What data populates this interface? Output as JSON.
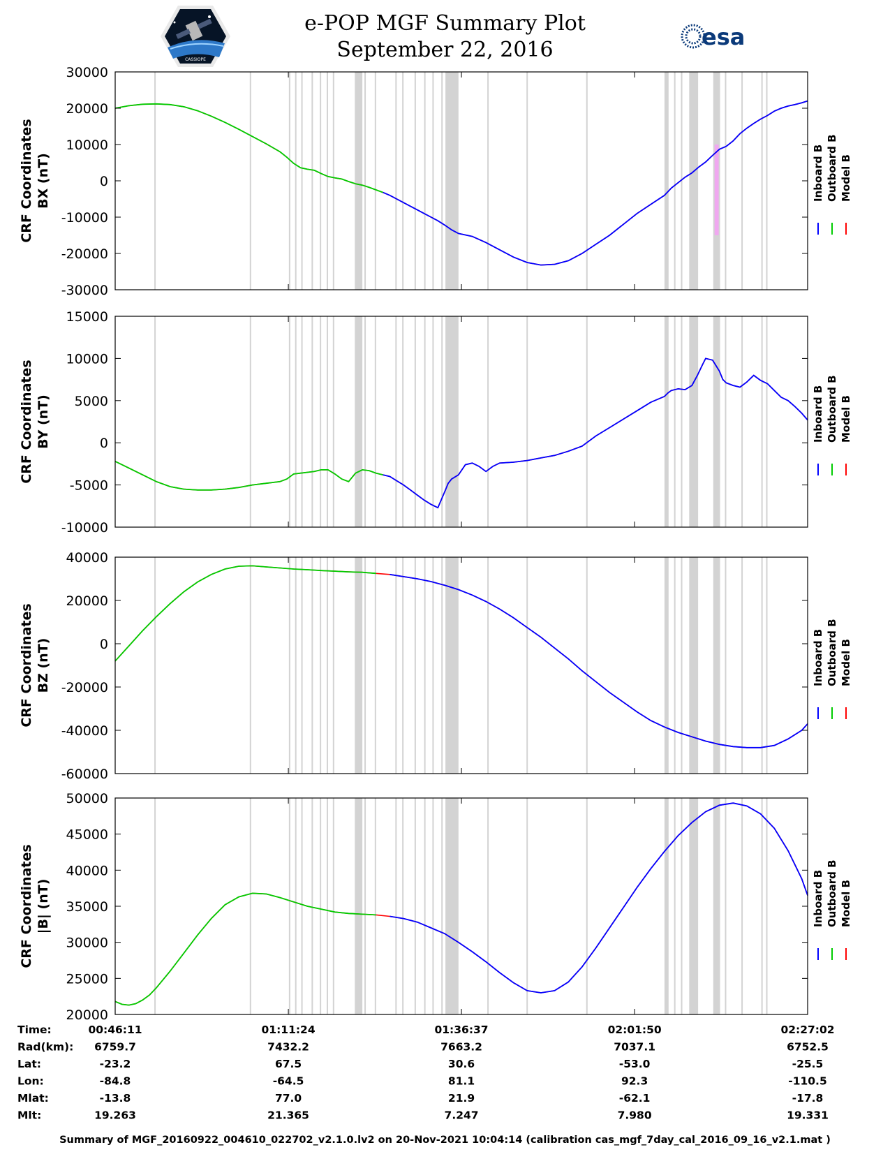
{
  "title": {
    "line1": "e-POP MGF Summary Plot",
    "line2": "September 22, 2016"
  },
  "logos": {
    "left": "cassiope-mission-logo",
    "left_text": "CASSIOPE",
    "right": "esa"
  },
  "colors": {
    "inboard": "#0000ff",
    "outboard": "#00cc00",
    "model": "#ff0000",
    "gap": "#d3d3d3",
    "highlight": "#f0a8f0"
  },
  "legend": [
    "Inboard B",
    "Outboard B",
    "Model B"
  ],
  "footer": "Summary of MGF_20160922_004610_022702_v2.1.0.lv2 on 20-Nov-2021 10:04:14 (calibration cas_mgf_7day_cal_2016_09_16_v2.1.mat )",
  "info_table": {
    "rows": [
      {
        "label": "Time:",
        "values": [
          "00:46:11",
          "01:11:24",
          "01:36:37",
          "02:01:50",
          "02:27:02"
        ]
      },
      {
        "label": "Rad(km):",
        "values": [
          "6759.7",
          "7432.2",
          "7663.2",
          "7037.1",
          "6752.5"
        ]
      },
      {
        "label": "Lat:",
        "values": [
          "-23.2",
          "67.5",
          "30.6",
          "-53.0",
          "-25.5"
        ]
      },
      {
        "label": "Lon:",
        "values": [
          "-84.8",
          "-64.5",
          "81.1",
          "92.3",
          "-110.5"
        ]
      },
      {
        "label": "Mlat:",
        "values": [
          "-13.8",
          "77.0",
          "21.9",
          "-62.1",
          "-17.8"
        ]
      },
      {
        "label": "Mlt:",
        "values": [
          "19.263",
          "21.365",
          "7.247",
          "7.980",
          "19.331"
        ]
      }
    ]
  },
  "chart_data": {
    "type": "line",
    "x_unit": "minutes after 00:46:11",
    "x_range": [
      0,
      100.85
    ],
    "x_ticks": [
      0,
      25.22,
      50.43,
      75.65,
      100.85
    ],
    "x_tick_labels": [
      "00:46:11",
      "01:11:24",
      "01:36:37",
      "02:01:50",
      "02:27:02"
    ],
    "outboard_to_inboard_switch_x": 39.5,
    "gap_bands": [
      [
        5.7,
        5.9
      ],
      [
        19.6,
        19.8
      ],
      [
        25.3,
        25.5
      ],
      [
        26.2,
        26.4
      ],
      [
        27.1,
        27.3
      ],
      [
        28.6,
        28.8
      ],
      [
        29.8,
        30.0
      ],
      [
        30.8,
        31.0
      ],
      [
        31.7,
        31.9
      ],
      [
        34.9,
        36.0
      ],
      [
        36.3,
        36.5
      ],
      [
        37.8,
        38.0
      ],
      [
        40.8,
        41.0
      ],
      [
        41.8,
        42.0
      ],
      [
        43.6,
        43.8
      ],
      [
        45.0,
        45.2
      ],
      [
        46.2,
        46.4
      ],
      [
        47.5,
        47.7
      ],
      [
        48.1,
        50.0
      ],
      [
        54.2,
        54.4
      ],
      [
        59.9,
        60.1
      ],
      [
        68.6,
        68.8
      ],
      [
        80.0,
        80.6
      ],
      [
        81.4,
        81.6
      ],
      [
        82.4,
        82.6
      ],
      [
        83.6,
        84.9
      ],
      [
        87.1,
        88.1
      ],
      [
        88.8,
        89.0
      ],
      [
        91.2,
        91.4
      ],
      [
        94.1,
        94.3
      ],
      [
        94.8,
        95.0
      ]
    ],
    "highlight_bands": [
      [
        87.3,
        87.9
      ]
    ],
    "panels": [
      {
        "ylabel_line1": "CRF Coordinates",
        "ylabel_line2": "BX (nT)",
        "ylim": [
          -30000,
          30000
        ],
        "yticks": [
          -30000,
          -20000,
          -10000,
          0,
          10000,
          20000,
          30000
        ],
        "ytick_labels": [
          "-30000",
          "-20000",
          "-10000",
          "0",
          "10000",
          "20000",
          "30000"
        ],
        "x": [
          0,
          2,
          4,
          6,
          8,
          10,
          12,
          14,
          16,
          18,
          20,
          22,
          24,
          25,
          26,
          27,
          28,
          29,
          30,
          31,
          32,
          33,
          34,
          35,
          36,
          37,
          38,
          39,
          40,
          41,
          42,
          43,
          44,
          45,
          46,
          47,
          48,
          49,
          50,
          52,
          54,
          56,
          58,
          60,
          62,
          64,
          66,
          68,
          70,
          72,
          74,
          76,
          78,
          80,
          81,
          82,
          83,
          84,
          85,
          86,
          87,
          88,
          89,
          90,
          91,
          92,
          93,
          94,
          95,
          96,
          97,
          98,
          99,
          100,
          100.85
        ],
        "y": [
          20000,
          20700,
          21100,
          21200,
          21000,
          20400,
          19300,
          17800,
          16100,
          14200,
          12200,
          10200,
          8000,
          6500,
          4800,
          3600,
          3200,
          2900,
          2000,
          1200,
          800,
          500,
          -200,
          -800,
          -1200,
          -1800,
          -2500,
          -3200,
          -4000,
          -5000,
          -6000,
          -7000,
          -8000,
          -9000,
          -10000,
          -11000,
          -12200,
          -13500,
          -14500,
          -15300,
          -17000,
          -19000,
          -21000,
          -22500,
          -23200,
          -23000,
          -22000,
          -20000,
          -17500,
          -15000,
          -12000,
          -9000,
          -6500,
          -4000,
          -2000,
          -500,
          1000,
          2200,
          3800,
          5200,
          7000,
          8700,
          9500,
          11000,
          13000,
          14500,
          15800,
          17000,
          18000,
          19200,
          20000,
          20600,
          21000,
          21500,
          22000
        ]
      },
      {
        "ylabel_line1": "CRF Coordinates",
        "ylabel_line2": "BY (nT)",
        "ylim": [
          -10000,
          15000
        ],
        "yticks": [
          -10000,
          -5000,
          0,
          5000,
          10000,
          15000
        ],
        "ytick_labels": [
          "-10000",
          "-5000",
          "0",
          "5000",
          "10000",
          "15000"
        ],
        "x": [
          0,
          2,
          4,
          6,
          8,
          10,
          12,
          14,
          16,
          18,
          20,
          22,
          24,
          25,
          26,
          27,
          28,
          29,
          30,
          31,
          32,
          33,
          34,
          35,
          36,
          37,
          38,
          39,
          40,
          41,
          42,
          43,
          44,
          45,
          46,
          47,
          48,
          48.5,
          49,
          50,
          51,
          52,
          53,
          54,
          55,
          56,
          58,
          60,
          62,
          64,
          66,
          68,
          70,
          72,
          74,
          76,
          78,
          80,
          80.5,
          81,
          82,
          83,
          84,
          84.8,
          85.5,
          86,
          87,
          88,
          88.5,
          89,
          90,
          91,
          92,
          93,
          94,
          95,
          96,
          97,
          98,
          99,
          100,
          100.85
        ],
        "y": [
          -2200,
          -3000,
          -3800,
          -4600,
          -5200,
          -5500,
          -5600,
          -5600,
          -5500,
          -5300,
          -5000,
          -4800,
          -4600,
          -4300,
          -3700,
          -3600,
          -3500,
          -3400,
          -3200,
          -3200,
          -3700,
          -4300,
          -4600,
          -3600,
          -3200,
          -3300,
          -3600,
          -3800,
          -4000,
          -4500,
          -5000,
          -5600,
          -6200,
          -6800,
          -7300,
          -7700,
          -5800,
          -4800,
          -4300,
          -3800,
          -2600,
          -2400,
          -2800,
          -3400,
          -2800,
          -2400,
          -2300,
          -2100,
          -1800,
          -1500,
          -1000,
          -400,
          800,
          1800,
          2800,
          3800,
          4800,
          5500,
          5900,
          6200,
          6400,
          6300,
          6800,
          8000,
          9200,
          10000,
          9800,
          8500,
          7500,
          7100,
          6800,
          6600,
          7200,
          8000,
          7400,
          7000,
          6200,
          5400,
          5000,
          4300,
          3500,
          2700
        ]
      },
      {
        "ylabel_line1": "CRF Coordinates",
        "ylabel_line2": "BZ (nT)",
        "ylim": [
          -60000,
          40000
        ],
        "yticks": [
          -60000,
          -40000,
          -20000,
          0,
          20000,
          40000
        ],
        "ytick_labels": [
          "-60000",
          "-40000",
          "-20000",
          "0",
          "20000",
          "40000"
        ],
        "x": [
          0,
          2,
          4,
          6,
          8,
          10,
          12,
          14,
          16,
          18,
          20,
          22,
          24,
          26,
          28,
          30,
          32,
          34,
          36,
          38,
          40,
          42,
          44,
          46,
          48,
          50,
          52,
          54,
          56,
          58,
          60,
          62,
          64,
          66,
          68,
          70,
          72,
          74,
          76,
          78,
          80,
          82,
          84,
          86,
          88,
          90,
          92,
          94,
          96,
          98,
          100,
          100.85
        ],
        "y": [
          -8000,
          -1000,
          6000,
          12500,
          18500,
          24000,
          28500,
          32000,
          34500,
          35800,
          36000,
          35500,
          35000,
          34500,
          34200,
          33800,
          33500,
          33200,
          33000,
          32500,
          32000,
          31000,
          30000,
          28700,
          27000,
          25000,
          22500,
          19500,
          16000,
          12000,
          7500,
          3000,
          -2000,
          -7000,
          -12500,
          -17500,
          -22500,
          -27000,
          -31500,
          -35500,
          -38500,
          -41000,
          -43000,
          -45000,
          -46500,
          -47500,
          -48000,
          -48000,
          -47000,
          -44000,
          -40000,
          -37000
        ]
      },
      {
        "ylabel_line1": "CRF Coordinates",
        "ylabel_line2": "|B| (nT)",
        "ylim": [
          20000,
          50000
        ],
        "yticks": [
          20000,
          25000,
          30000,
          35000,
          40000,
          45000,
          50000
        ],
        "ytick_labels": [
          "20000",
          "25000",
          "30000",
          "35000",
          "40000",
          "45000",
          "50000"
        ],
        "x": [
          0,
          1,
          2,
          3,
          4,
          5,
          6,
          8,
          10,
          12,
          14,
          16,
          18,
          20,
          22,
          24,
          26,
          28,
          30,
          32,
          34,
          36,
          38,
          40,
          42,
          44,
          46,
          48,
          50,
          52,
          54,
          56,
          58,
          60,
          62,
          64,
          66,
          68,
          70,
          72,
          74,
          76,
          78,
          80,
          82,
          84,
          86,
          88,
          90,
          92,
          94,
          96,
          98,
          100,
          100.85
        ],
        "y": [
          21800,
          21400,
          21300,
          21500,
          22000,
          22700,
          23700,
          26000,
          28500,
          31000,
          33300,
          35200,
          36300,
          36800,
          36700,
          36200,
          35600,
          35000,
          34600,
          34200,
          34000,
          33900,
          33800,
          33600,
          33300,
          32800,
          32000,
          31200,
          30000,
          28700,
          27300,
          25800,
          24400,
          23300,
          23000,
          23300,
          24500,
          26600,
          29200,
          32000,
          34800,
          37600,
          40200,
          42600,
          44800,
          46600,
          48100,
          49000,
          49300,
          48900,
          47800,
          45800,
          42700,
          38800,
          36500
        ]
      }
    ]
  }
}
